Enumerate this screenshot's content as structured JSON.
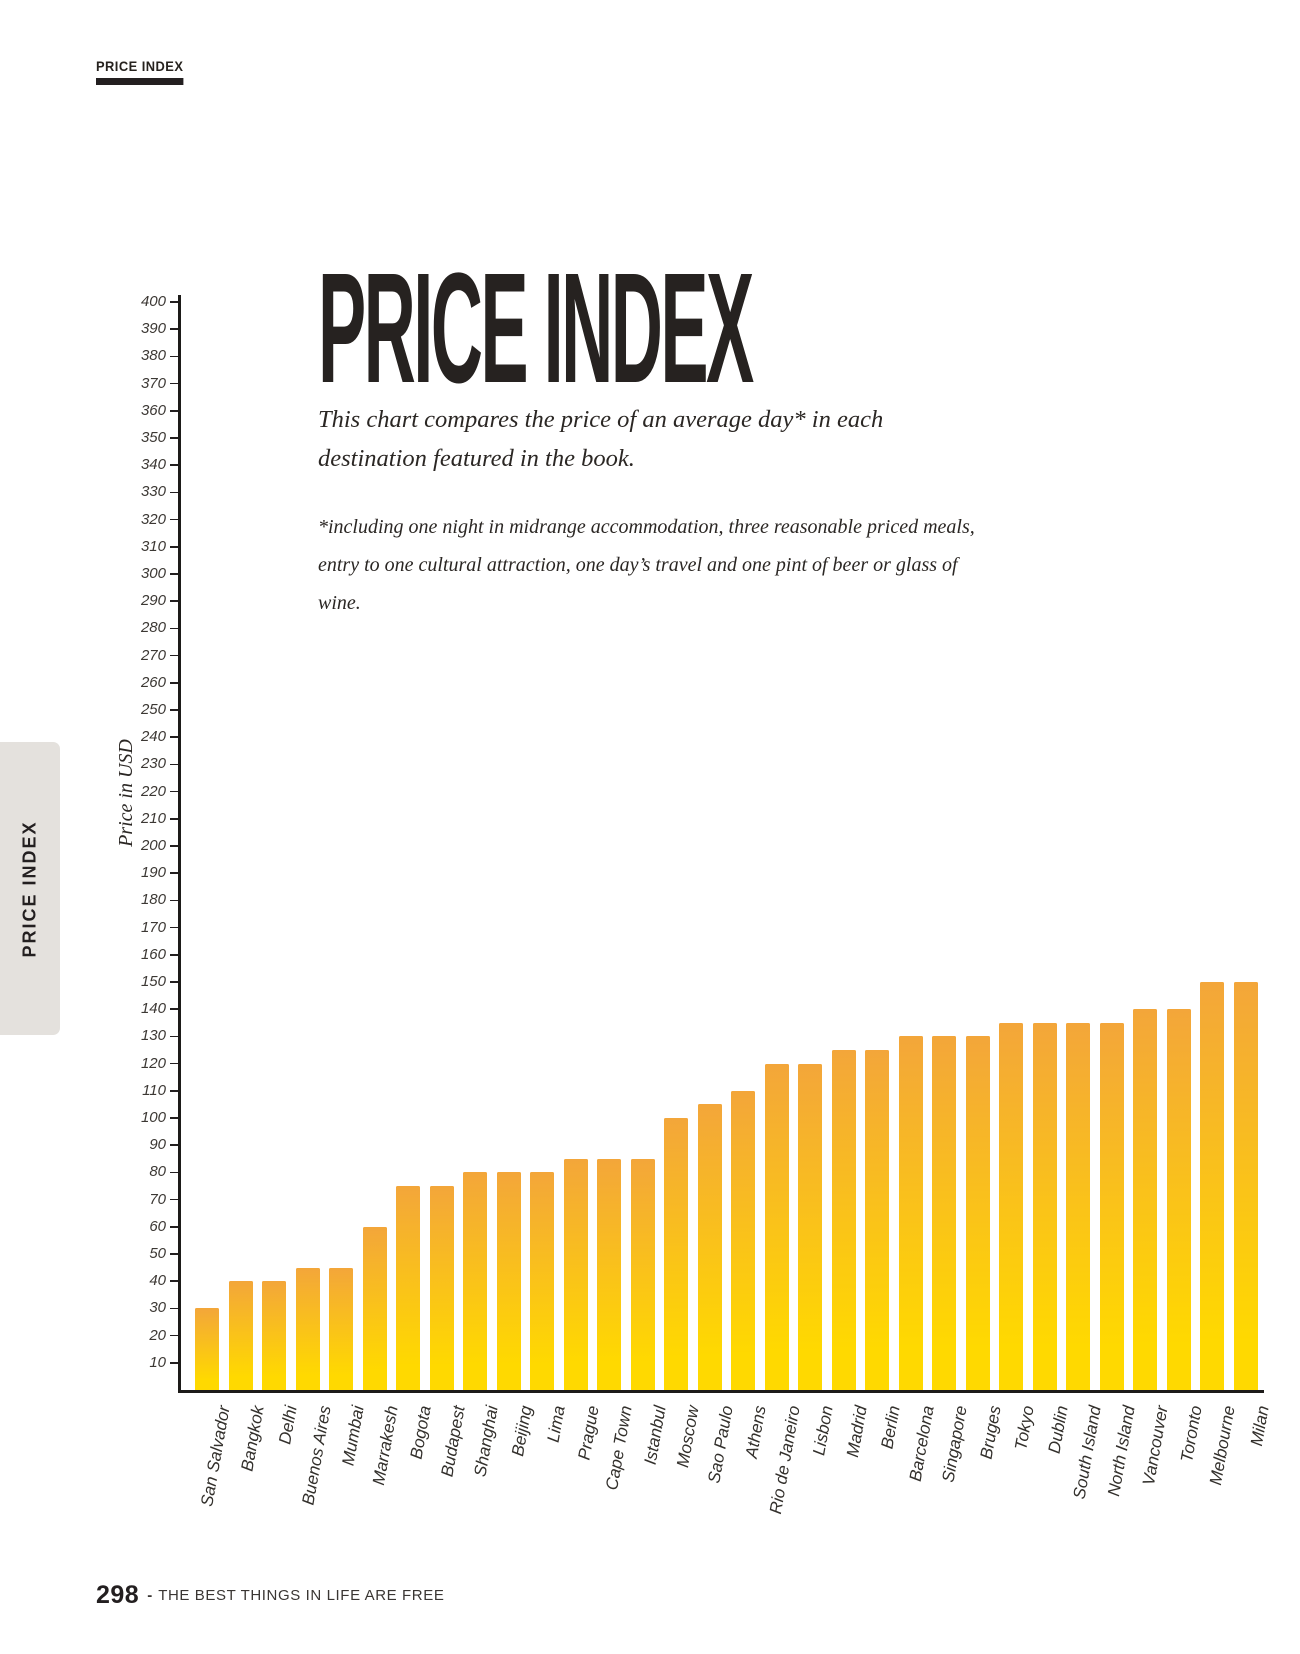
{
  "page": {
    "header_label": "PRICE INDEX",
    "sidebar_label": "PRICE INDEX",
    "footer": {
      "page_number": "298",
      "separator": "-",
      "book_title": "THE BEST THINGS IN LIFE ARE FREE"
    }
  },
  "chart_data": {
    "type": "bar",
    "title": "PRICE INDEX",
    "subtitle": "This chart compares the price of an average day* in each destination featured in the book.",
    "footnote": "*including one night in midrange accommodation, three reasonable priced meals, entry to one cultural attraction, one day’s travel and one pint of beer or glass of wine.",
    "ylabel": "Price in USD",
    "ylim": [
      0,
      400
    ],
    "ytick_step": 10,
    "grid": false,
    "legend": false,
    "bar_gradient": {
      "top": "#F3A63A",
      "bottom": "#FFD900"
    },
    "categories": [
      "San Salvador",
      "Bangkok",
      "Delhi",
      "Buenos Aires",
      "Mumbai",
      "Marrakesh",
      "Bogota",
      "Budapest",
      "Shanghai",
      "Beijing",
      "Lima",
      "Prague",
      "Cape Town",
      "Istanbul",
      "Moscow",
      "Sao Paulo",
      "Athens",
      "Rio de Janeiro",
      "Lisbon",
      "Madrid",
      "Berlin",
      "Barcelona",
      "Singapore",
      "Bruges",
      "Tokyo",
      "Dublin",
      "South Island",
      "North Island",
      "Vancouver",
      "Toronto",
      "Melbourne",
      "Milan"
    ],
    "values": [
      30,
      40,
      40,
      45,
      45,
      60,
      75,
      75,
      80,
      80,
      80,
      85,
      85,
      85,
      100,
      105,
      110,
      120,
      120,
      125,
      125,
      130,
      130,
      130,
      135,
      135,
      135,
      135,
      140,
      140,
      150,
      150
    ]
  }
}
